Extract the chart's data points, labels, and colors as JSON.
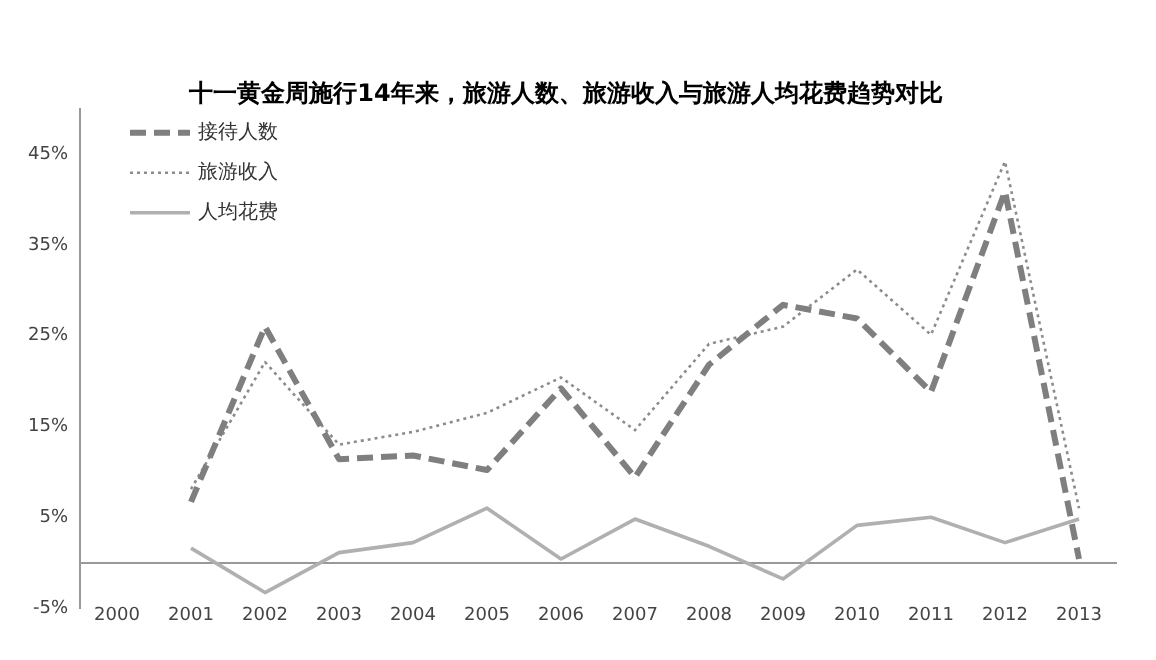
{
  "chart_data": {
    "type": "line",
    "title": "十一黄金周施行14年来，旅游人数、旅游收入与旅游人均花费趋势对比",
    "categories": [
      "2000",
      "2001",
      "2002",
      "2003",
      "2004",
      "2005",
      "2006",
      "2007",
      "2008",
      "2009",
      "2010",
      "2011",
      "2012",
      "2013"
    ],
    "series": [
      {
        "name": "接待人数",
        "color": "#7f7f7f",
        "line_style": "dashed",
        "values": [
          null,
          6.7,
          26.0,
          11.4,
          11.8,
          10.2,
          19.2,
          9.4,
          21.8,
          28.4,
          26.9,
          18.8,
          40.9,
          0.4
        ]
      },
      {
        "name": "旅游收入",
        "color": "#8c8c8c",
        "line_style": "dotted",
        "values": [
          null,
          8.1,
          22.1,
          13.0,
          14.4,
          16.5,
          20.4,
          14.6,
          24.1,
          26.0,
          32.3,
          25.1,
          44.2,
          6.0
        ]
      },
      {
        "name": "人均花费",
        "color": "#b0b0b0",
        "line_style": "solid",
        "values": [
          null,
          1.6,
          -3.3,
          1.1,
          2.2,
          6.0,
          0.4,
          4.8,
          1.8,
          -1.8,
          4.1,
          5.0,
          2.2,
          4.8
        ]
      }
    ],
    "ylim": [
      -5,
      50
    ],
    "yticks": [
      {
        "value": -5,
        "label": "-5%"
      },
      {
        "value": 5,
        "label": "5%"
      },
      {
        "value": 15,
        "label": "15%"
      },
      {
        "value": 25,
        "label": "25%"
      },
      {
        "value": 35,
        "label": "35%"
      },
      {
        "value": 45,
        "label": "45%"
      }
    ],
    "grid": false,
    "legend": "top left",
    "marker": "none"
  }
}
